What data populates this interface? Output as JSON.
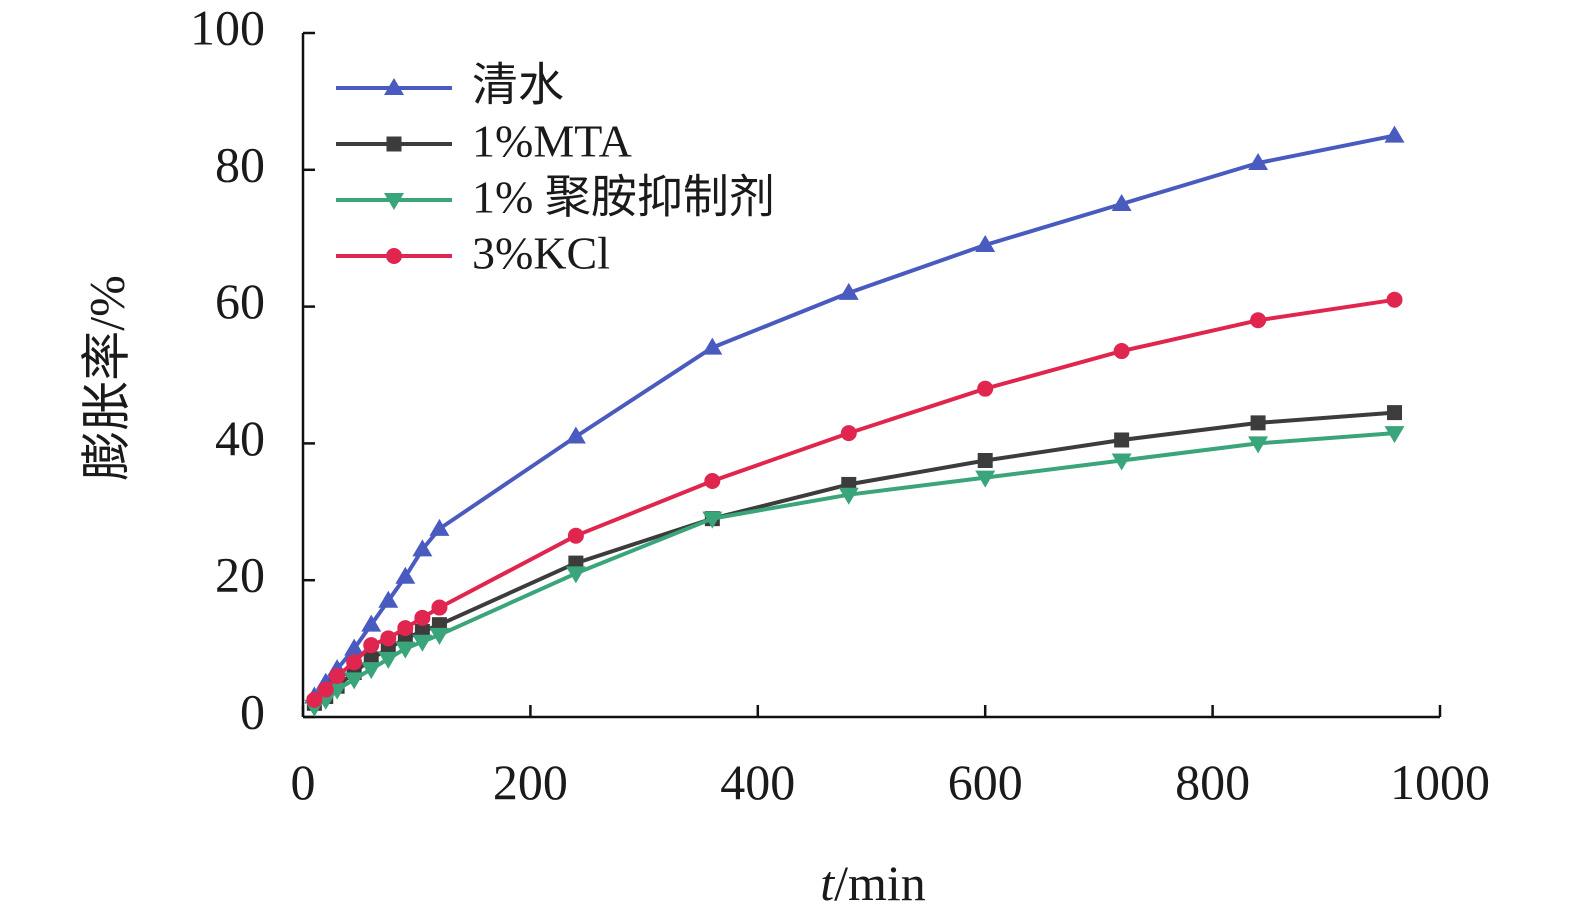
{
  "chart_data": {
    "type": "line",
    "xlabel": {
      "italic": "t",
      "rest": "/min"
    },
    "ylabel": "膨胀率/%",
    "xlim": [
      0,
      1000
    ],
    "ylim": [
      0,
      100
    ],
    "xticks": [
      0,
      200,
      400,
      600,
      800,
      1000
    ],
    "yticks": [
      0,
      20,
      40,
      60,
      80,
      100
    ],
    "grid": false,
    "legend_position": "top-left",
    "x": [
      10,
      20,
      30,
      45,
      60,
      75,
      90,
      105,
      120,
      240,
      360,
      480,
      600,
      720,
      840,
      960
    ],
    "series": [
      {
        "name": "清水",
        "color": "#4a5bbf",
        "marker": "triangle-up",
        "values": [
          3.0,
          5.0,
          7.0,
          10.0,
          13.5,
          17.0,
          20.5,
          24.5,
          27.5,
          41.0,
          54.0,
          62.0,
          69.0,
          75.0,
          81.0,
          85.0
        ]
      },
      {
        "name": "1%MTA",
        "color": "#3c3c3c",
        "marker": "square",
        "values": [
          2.0,
          3.0,
          4.5,
          6.5,
          8.5,
          10.0,
          11.5,
          12.5,
          13.5,
          22.5,
          29.0,
          34.0,
          37.5,
          40.5,
          43.0,
          44.5
        ]
      },
      {
        "name": "1% 聚胺抑制剂",
        "color": "#3aa57a",
        "marker": "triangle-down",
        "values": [
          1.5,
          2.5,
          4.0,
          5.5,
          7.0,
          8.5,
          10.0,
          11.0,
          12.0,
          21.0,
          29.0,
          32.5,
          35.0,
          37.5,
          40.0,
          41.5
        ]
      },
      {
        "name": "3%KCl",
        "color": "#e0264e",
        "marker": "circle",
        "values": [
          2.5,
          4.0,
          6.0,
          8.0,
          10.5,
          11.5,
          13.0,
          14.5,
          16.0,
          26.5,
          34.5,
          41.5,
          48.0,
          53.5,
          58.0,
          61.0
        ]
      }
    ]
  }
}
